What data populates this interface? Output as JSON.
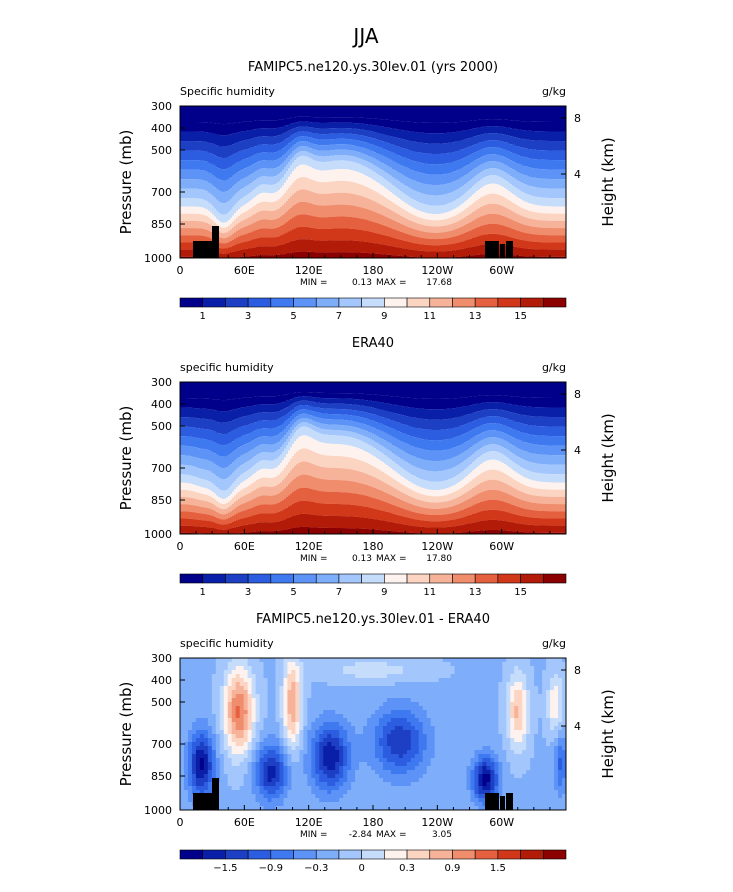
{
  "main_title": "JJA",
  "chart_data": [
    {
      "type": "heatmap",
      "title": "FAMIPC5.ne120.ys.30lev.01 (yrs 2000)",
      "left_label": "Specific humidity",
      "right_label": "g/kg",
      "ylabel": "Pressure (mb)",
      "y2label": "Height (km)",
      "xticks": [
        "0",
        "60E",
        "120E",
        "180",
        "120W",
        "60W"
      ],
      "yticks": [
        "300",
        "400",
        "500",
        "700",
        "850",
        "1000"
      ],
      "y2ticks": [
        "8",
        "4"
      ],
      "stats": {
        "min_label": "MIN =",
        "min": "0.13",
        "max_label": "MAX =",
        "max": "17.68"
      },
      "colorbar_labels": [
        "1",
        "3",
        "5",
        "7",
        "9",
        "11",
        "13",
        "15"
      ],
      "colors": [
        "#00008b",
        "#0a1fa8",
        "#1d3fc4",
        "#2c5de0",
        "#3f79f0",
        "#5d93f7",
        "#7eadfa",
        "#a3c6fc",
        "#c6dcfb",
        "#fdf2ee",
        "#fbd4c2",
        "#f6b39a",
        "#ef8d6d",
        "#e5603e",
        "#d13719",
        "#b21b08",
        "#8b0000"
      ]
    },
    {
      "type": "heatmap",
      "title": "ERA40",
      "left_label": "specific humidity",
      "right_label": "g/kg",
      "ylabel": "Pressure (mb)",
      "y2label": "Height (km)",
      "xticks": [
        "0",
        "60E",
        "120E",
        "180",
        "120W",
        "60W"
      ],
      "yticks": [
        "300",
        "400",
        "500",
        "700",
        "850",
        "1000"
      ],
      "y2ticks": [
        "8",
        "4"
      ],
      "stats": {
        "min_label": "MIN =",
        "min": "0.13",
        "max_label": "MAX =",
        "max": "17.80"
      },
      "colorbar_labels": [
        "1",
        "3",
        "5",
        "7",
        "9",
        "11",
        "13",
        "15"
      ],
      "colors": [
        "#00008b",
        "#0a1fa8",
        "#1d3fc4",
        "#2c5de0",
        "#3f79f0",
        "#5d93f7",
        "#7eadfa",
        "#a3c6fc",
        "#c6dcfb",
        "#fdf2ee",
        "#fbd4c2",
        "#f6b39a",
        "#ef8d6d",
        "#e5603e",
        "#d13719",
        "#b21b08",
        "#8b0000"
      ]
    },
    {
      "type": "heatmap",
      "title": "FAMIPC5.ne120.ys.30lev.01 - ERA40",
      "left_label": "specific humidity",
      "right_label": "g/kg",
      "ylabel": "Pressure (mb)",
      "y2label": "Height (km)",
      "xticks": [
        "0",
        "60E",
        "120E",
        "180",
        "120W",
        "60W"
      ],
      "yticks": [
        "300",
        "400",
        "500",
        "700",
        "850",
        "1000"
      ],
      "y2ticks": [
        "8",
        "4"
      ],
      "stats": {
        "min_label": "MIN =",
        "min": "-2.84",
        "max_label": "MAX =",
        "max": "3.05"
      },
      "colorbar_labels": [
        "−1.5",
        "−0.9",
        "−0.3",
        "0",
        "0.3",
        "0.9",
        "1.5"
      ],
      "colors": [
        "#00008b",
        "#0a1fa8",
        "#1d3fc4",
        "#2c5de0",
        "#3f79f0",
        "#5d93f7",
        "#7eadfa",
        "#a3c6fc",
        "#c6dcfb",
        "#fdf2ee",
        "#fbd4c2",
        "#f6b39a",
        "#ef8d6d",
        "#e5603e",
        "#d13719",
        "#b21b08",
        "#8b0000"
      ]
    }
  ]
}
